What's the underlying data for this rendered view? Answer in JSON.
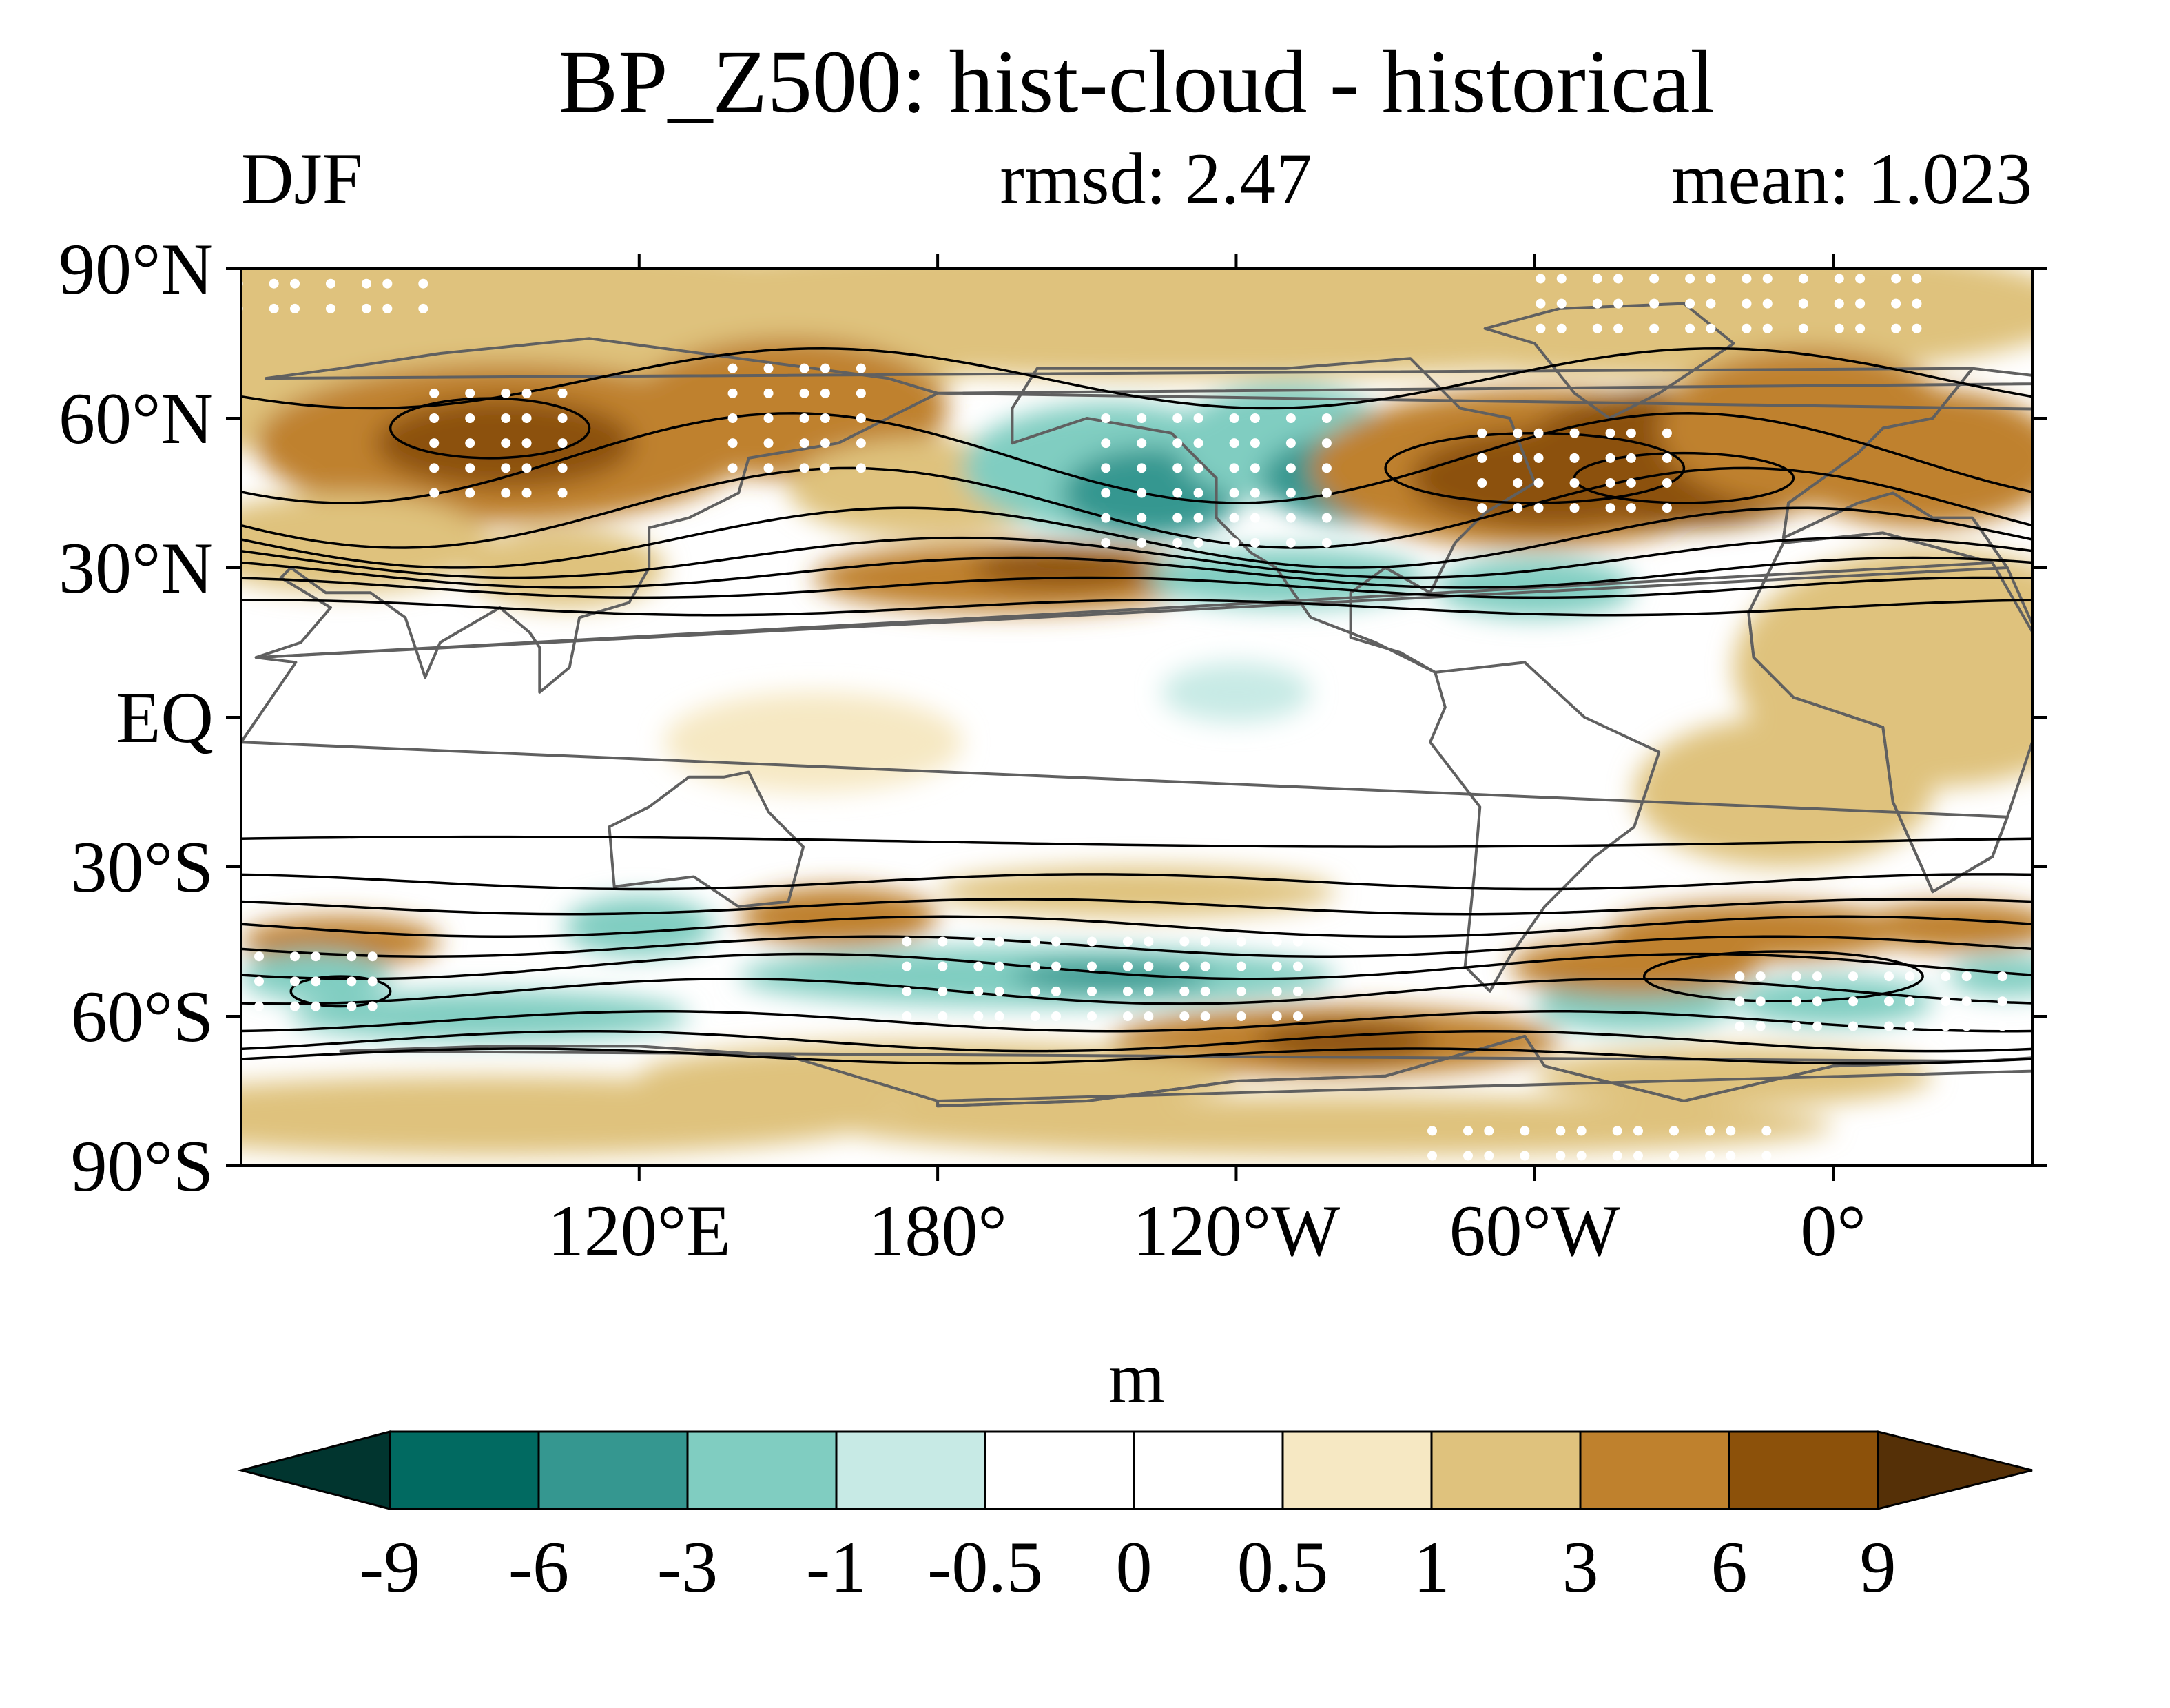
{
  "title": "BP_Z500: hist-cloud - historical",
  "season": "DJF",
  "rmsd_text": "rmsd: 2.47",
  "mean_text": "mean: 1.023",
  "colorbar": {
    "unit": "m",
    "levels": [
      "-9",
      "-6",
      "-3",
      "-1",
      "-0.5",
      "0",
      "0.5",
      "1",
      "3",
      "6",
      "9"
    ],
    "colors": [
      "#01352f",
      "#016a61",
      "#359790",
      "#80cdc1",
      "#c7eae5",
      "#ffffff",
      "#ffffff",
      "#f6e8c3",
      "#dfc27d",
      "#bf812d",
      "#8c510a",
      "#553007"
    ]
  },
  "map": {
    "lat_ticks": [
      "90°N",
      "60°N",
      "30°N",
      "EQ",
      "30°S",
      "60°S",
      "90°S"
    ],
    "lon_ticks": [
      "120°E",
      "180°",
      "120°W",
      "60°W",
      "0°"
    ],
    "lon_range": [
      40,
      400
    ],
    "lat_range": [
      -90,
      90
    ],
    "coastline_color": "#606060",
    "contour_color": "#000000",
    "stipple_color": "#ffffff"
  },
  "chart_data": {
    "type": "heatmap",
    "title": "BP_Z500: hist-cloud - historical",
    "subtitle_left": "DJF",
    "rmsd": 2.47,
    "mean": 1.023,
    "colorbar_label": "m",
    "x_axis": "longitude",
    "y_axis": "latitude",
    "field_anomalies_m": [
      {
        "lon": 93,
        "lat": 55,
        "value": 6.5
      },
      {
        "lon": 150,
        "lat": 62,
        "value": 4
      },
      {
        "lon": 220,
        "lat": 45,
        "value": -5
      },
      {
        "lon": 265,
        "lat": 48,
        "value": -7
      },
      {
        "lon": 300,
        "lat": 48,
        "value": 8
      },
      {
        "lon": 325,
        "lat": 52,
        "value": 7
      },
      {
        "lon": 355,
        "lat": 58,
        "value": 5
      },
      {
        "lon": 200,
        "lat": 30,
        "value": 5
      },
      {
        "lon": 250,
        "lat": 28,
        "value": -3
      },
      {
        "lon": 300,
        "lat": 25,
        "value": -3
      },
      {
        "lon": 200,
        "lat": -50,
        "value": -4.5
      },
      {
        "lon": 120,
        "lat": -42,
        "value": -3
      },
      {
        "lon": 55,
        "lat": -52,
        "value": -3
      },
      {
        "lon": 260,
        "lat": -65,
        "value": 7
      },
      {
        "lon": 345,
        "lat": -45,
        "value": 5
      },
      {
        "lon": 15,
        "lat": -62,
        "value": -4
      },
      {
        "lon": 250,
        "lat": 0,
        "value": -1
      }
    ]
  }
}
